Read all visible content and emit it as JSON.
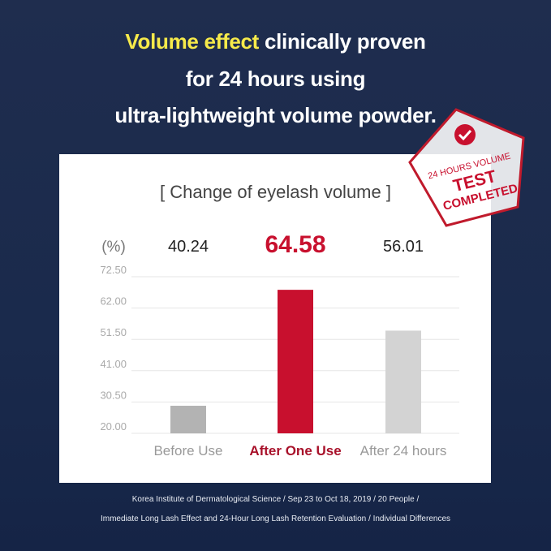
{
  "headline": {
    "highlight": "Volume effect",
    "line1_rest": " clinically proven",
    "line2": "for 24 hours using",
    "line3": "ultra-lightweight volume powder."
  },
  "stamp": {
    "line1": "24 HOURS VOLUME",
    "line2": "TEST",
    "line3": "COMPLETED",
    "icon": "checkmark-badge-icon"
  },
  "chart_data": {
    "type": "bar",
    "title": "[ Change of eyelash volume ]",
    "ylabel": "(%)",
    "categories": [
      "Before Use",
      "After One Use",
      "After 24 hours"
    ],
    "values": [
      40.24,
      64.58,
      56.01
    ],
    "value_labels": [
      "40.24",
      "64.58",
      "56.01"
    ],
    "yticks": [
      "72.50",
      "62.00",
      "51.50",
      "41.00",
      "30.50",
      "20.00"
    ],
    "ylim": [
      20.0,
      72.5
    ],
    "grid": true,
    "colors": [
      "#b3b3b3",
      "#c8102e",
      "#d3d3d3"
    ],
    "highlight_color": "#c8102e"
  },
  "footnote": {
    "line1": "Korea Institute of Dermatological Science / Sep 23 to Oct 18, 2019 / 20 People /",
    "line2": "Immediate Long Lash Effect and 24-Hour Long Lash Retention Evaluation / Individual Differences"
  }
}
